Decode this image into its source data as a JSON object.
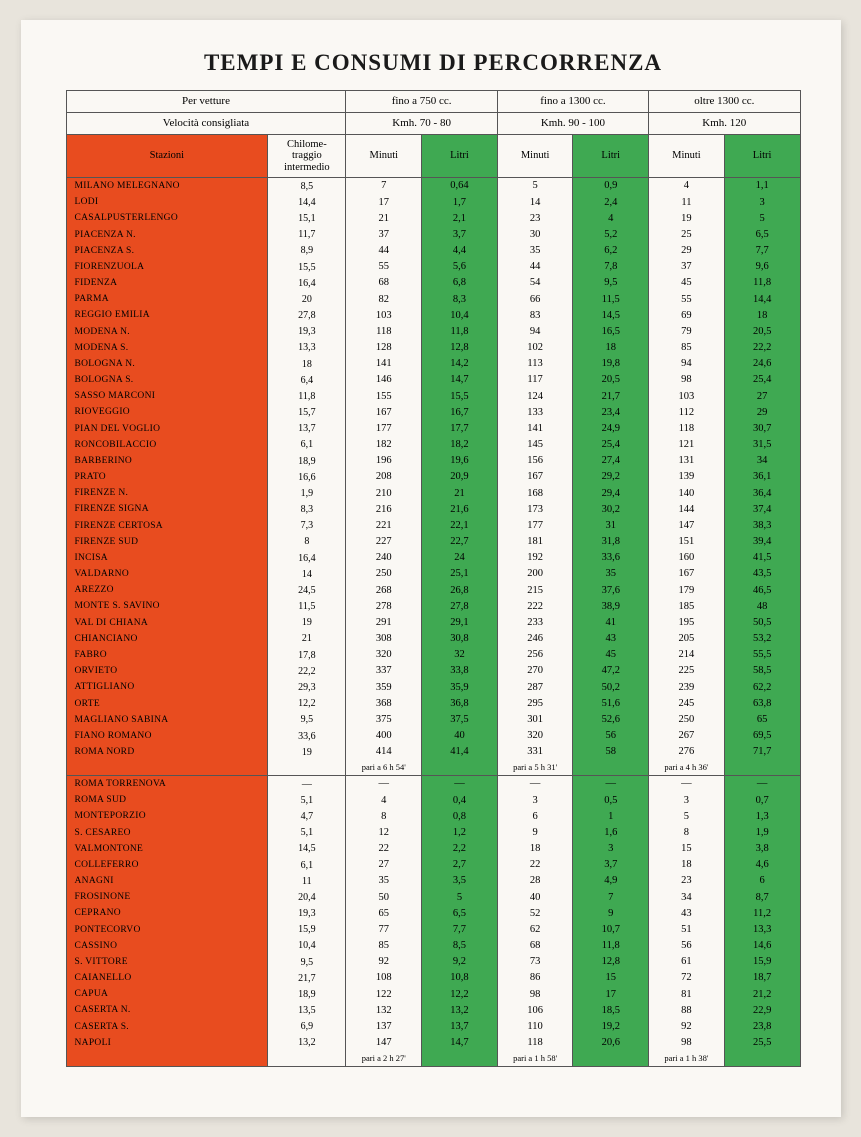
{
  "title": "TEMPI E CONSUMI DI PERCORRENZA",
  "colors": {
    "red": "#e84c1f",
    "green": "#3fa952",
    "paper": "#faf8f4",
    "border": "#555555"
  },
  "header": {
    "veh_label": "Per vetture",
    "speed_label": "Velocità consigliata",
    "stazioni_label": "Stazioni",
    "chilom_label": "Chilome-traggio intermedio",
    "cc1": "fino a 750 cc.",
    "cc2": "fino a 1300 cc.",
    "cc3": "oltre 1300 cc.",
    "kmh1": "Kmh. 70 - 80",
    "kmh2": "Kmh. 90 - 100",
    "kmh3": "Kmh. 120",
    "minuti": "Minuti",
    "litri": "Litri"
  },
  "section1": [
    {
      "stazione": "MILANO MELEGNANO",
      "km": "8,5",
      "m1": "7",
      "l1": "0,64",
      "m2": "5",
      "l2": "0,9",
      "m3": "4",
      "l3": "1,1"
    },
    {
      "stazione": "LODI",
      "km": "14,4",
      "m1": "17",
      "l1": "1,7",
      "m2": "14",
      "l2": "2,4",
      "m3": "11",
      "l3": "3"
    },
    {
      "stazione": "CASALPUSTERLENGO",
      "km": "15,1",
      "m1": "21",
      "l1": "2,1",
      "m2": "23",
      "l2": "4",
      "m3": "19",
      "l3": "5"
    },
    {
      "stazione": "PIACENZA N.",
      "km": "11,7",
      "m1": "37",
      "l1": "3,7",
      "m2": "30",
      "l2": "5,2",
      "m3": "25",
      "l3": "6,5"
    },
    {
      "stazione": "PIACENZA S.",
      "km": "8,9",
      "m1": "44",
      "l1": "4,4",
      "m2": "35",
      "l2": "6,2",
      "m3": "29",
      "l3": "7,7"
    },
    {
      "stazione": "FIORENZUOLA",
      "km": "15,5",
      "m1": "55",
      "l1": "5,6",
      "m2": "44",
      "l2": "7,8",
      "m3": "37",
      "l3": "9,6"
    },
    {
      "stazione": "FIDENZA",
      "km": "16,4",
      "m1": "68",
      "l1": "6,8",
      "m2": "54",
      "l2": "9,5",
      "m3": "45",
      "l3": "11,8"
    },
    {
      "stazione": "PARMA",
      "km": "20",
      "m1": "82",
      "l1": "8,3",
      "m2": "66",
      "l2": "11,5",
      "m3": "55",
      "l3": "14,4"
    },
    {
      "stazione": "REGGIO EMILIA",
      "km": "27,8",
      "m1": "103",
      "l1": "10,4",
      "m2": "83",
      "l2": "14,5",
      "m3": "69",
      "l3": "18"
    },
    {
      "stazione": "MODENA N.",
      "km": "19,3",
      "m1": "118",
      "l1": "11,8",
      "m2": "94",
      "l2": "16,5",
      "m3": "79",
      "l3": "20,5"
    },
    {
      "stazione": "MODENA S.",
      "km": "13,3",
      "m1": "128",
      "l1": "12,8",
      "m2": "102",
      "l2": "18",
      "m3": "85",
      "l3": "22,2"
    },
    {
      "stazione": "BOLOGNA N.",
      "km": "18",
      "m1": "141",
      "l1": "14,2",
      "m2": "113",
      "l2": "19,8",
      "m3": "94",
      "l3": "24,6"
    },
    {
      "stazione": "BOLOGNA S.",
      "km": "6,4",
      "m1": "146",
      "l1": "14,7",
      "m2": "117",
      "l2": "20,5",
      "m3": "98",
      "l3": "25,4"
    },
    {
      "stazione": "SASSO MARCONI",
      "km": "11,8",
      "m1": "155",
      "l1": "15,5",
      "m2": "124",
      "l2": "21,7",
      "m3": "103",
      "l3": "27"
    },
    {
      "stazione": "RIOVEGGIO",
      "km": "15,7",
      "m1": "167",
      "l1": "16,7",
      "m2": "133",
      "l2": "23,4",
      "m3": "112",
      "l3": "29"
    },
    {
      "stazione": "PIAN DEL VOGLIO",
      "km": "13,7",
      "m1": "177",
      "l1": "17,7",
      "m2": "141",
      "l2": "24,9",
      "m3": "118",
      "l3": "30,7"
    },
    {
      "stazione": "RONCOBILACCIO",
      "km": "6,1",
      "m1": "182",
      "l1": "18,2",
      "m2": "145",
      "l2": "25,4",
      "m3": "121",
      "l3": "31,5"
    },
    {
      "stazione": "BARBERINO",
      "km": "18,9",
      "m1": "196",
      "l1": "19,6",
      "m2": "156",
      "l2": "27,4",
      "m3": "131",
      "l3": "34"
    },
    {
      "stazione": "PRATO",
      "km": "16,6",
      "m1": "208",
      "l1": "20,9",
      "m2": "167",
      "l2": "29,2",
      "m3": "139",
      "l3": "36,1"
    },
    {
      "stazione": "FIRENZE N.",
      "km": "1,9",
      "m1": "210",
      "l1": "21",
      "m2": "168",
      "l2": "29,4",
      "m3": "140",
      "l3": "36,4"
    },
    {
      "stazione": "FIRENZE SIGNA",
      "km": "8,3",
      "m1": "216",
      "l1": "21,6",
      "m2": "173",
      "l2": "30,2",
      "m3": "144",
      "l3": "37,4"
    },
    {
      "stazione": "FIRENZE CERTOSA",
      "km": "7,3",
      "m1": "221",
      "l1": "22,1",
      "m2": "177",
      "l2": "31",
      "m3": "147",
      "l3": "38,3"
    },
    {
      "stazione": "FIRENZE SUD",
      "km": "8",
      "m1": "227",
      "l1": "22,7",
      "m2": "181",
      "l2": "31,8",
      "m3": "151",
      "l3": "39,4"
    },
    {
      "stazione": "INCISA",
      "km": "16,4",
      "m1": "240",
      "l1": "24",
      "m2": "192",
      "l2": "33,6",
      "m3": "160",
      "l3": "41,5"
    },
    {
      "stazione": "VALDARNO",
      "km": "14",
      "m1": "250",
      "l1": "25,1",
      "m2": "200",
      "l2": "35",
      "m3": "167",
      "l3": "43,5"
    },
    {
      "stazione": "AREZZO",
      "km": "24,5",
      "m1": "268",
      "l1": "26,8",
      "m2": "215",
      "l2": "37,6",
      "m3": "179",
      "l3": "46,5"
    },
    {
      "stazione": "MONTE S. SAVINO",
      "km": "11,5",
      "m1": "278",
      "l1": "27,8",
      "m2": "222",
      "l2": "38,9",
      "m3": "185",
      "l3": "48"
    },
    {
      "stazione": "VAL DI CHIANA",
      "km": "19",
      "m1": "291",
      "l1": "29,1",
      "m2": "233",
      "l2": "41",
      "m3": "195",
      "l3": "50,5"
    },
    {
      "stazione": "CHIANCIANO",
      "km": "21",
      "m1": "308",
      "l1": "30,8",
      "m2": "246",
      "l2": "43",
      "m3": "205",
      "l3": "53,2"
    },
    {
      "stazione": "FABRO",
      "km": "17,8",
      "m1": "320",
      "l1": "32",
      "m2": "256",
      "l2": "45",
      "m3": "214",
      "l3": "55,5"
    },
    {
      "stazione": "ORVIETO",
      "km": "22,2",
      "m1": "337",
      "l1": "33,8",
      "m2": "270",
      "l2": "47,2",
      "m3": "225",
      "l3": "58,5"
    },
    {
      "stazione": "ATTIGLIANO",
      "km": "29,3",
      "m1": "359",
      "l1": "35,9",
      "m2": "287",
      "l2": "50,2",
      "m3": "239",
      "l3": "62,2"
    },
    {
      "stazione": "ORTE",
      "km": "12,2",
      "m1": "368",
      "l1": "36,8",
      "m2": "295",
      "l2": "51,6",
      "m3": "245",
      "l3": "63,8"
    },
    {
      "stazione": "MAGLIANO SABINA",
      "km": "9,5",
      "m1": "375",
      "l1": "37,5",
      "m2": "301",
      "l2": "52,6",
      "m3": "250",
      "l3": "65"
    },
    {
      "stazione": "FIANO ROMANO",
      "km": "33,6",
      "m1": "400",
      "l1": "40",
      "m2": "320",
      "l2": "56",
      "m3": "267",
      "l3": "69,5"
    },
    {
      "stazione": "ROMA NORD",
      "km": "19",
      "m1": "414",
      "l1": "41,4",
      "m2": "331",
      "l2": "58",
      "m3": "276",
      "l3": "71,7"
    }
  ],
  "footer1": {
    "n1": "pari a 6 h 54'",
    "n2": "pari a 5 h 31'",
    "n3": "pari a 4 h 36'"
  },
  "section2": [
    {
      "stazione": "ROMA TORRENOVA",
      "km": "—",
      "m1": "—",
      "l1": "—",
      "m2": "—",
      "l2": "—",
      "m3": "—",
      "l3": "—"
    },
    {
      "stazione": "ROMA SUD",
      "km": "5,1",
      "m1": "4",
      "l1": "0,4",
      "m2": "3",
      "l2": "0,5",
      "m3": "3",
      "l3": "0,7"
    },
    {
      "stazione": "MONTEPORZIO",
      "km": "4,7",
      "m1": "8",
      "l1": "0,8",
      "m2": "6",
      "l2": "1",
      "m3": "5",
      "l3": "1,3"
    },
    {
      "stazione": "S. CESAREO",
      "km": "5,1",
      "m1": "12",
      "l1": "1,2",
      "m2": "9",
      "l2": "1,6",
      "m3": "8",
      "l3": "1,9"
    },
    {
      "stazione": "VALMONTONE",
      "km": "14,5",
      "m1": "22",
      "l1": "2,2",
      "m2": "18",
      "l2": "3",
      "m3": "15",
      "l3": "3,8"
    },
    {
      "stazione": "COLLEFERRO",
      "km": "6,1",
      "m1": "27",
      "l1": "2,7",
      "m2": "22",
      "l2": "3,7",
      "m3": "18",
      "l3": "4,6"
    },
    {
      "stazione": "ANAGNI",
      "km": "11",
      "m1": "35",
      "l1": "3,5",
      "m2": "28",
      "l2": "4,9",
      "m3": "23",
      "l3": "6"
    },
    {
      "stazione": "FROSINONE",
      "km": "20,4",
      "m1": "50",
      "l1": "5",
      "m2": "40",
      "l2": "7",
      "m3": "34",
      "l3": "8,7"
    },
    {
      "stazione": "CEPRANO",
      "km": "19,3",
      "m1": "65",
      "l1": "6,5",
      "m2": "52",
      "l2": "9",
      "m3": "43",
      "l3": "11,2"
    },
    {
      "stazione": "PONTECORVO",
      "km": "15,9",
      "m1": "77",
      "l1": "7,7",
      "m2": "62",
      "l2": "10,7",
      "m3": "51",
      "l3": "13,3"
    },
    {
      "stazione": "CASSINO",
      "km": "10,4",
      "m1": "85",
      "l1": "8,5",
      "m2": "68",
      "l2": "11,8",
      "m3": "56",
      "l3": "14,6"
    },
    {
      "stazione": "S. VITTORE",
      "km": "9,5",
      "m1": "92",
      "l1": "9,2",
      "m2": "73",
      "l2": "12,8",
      "m3": "61",
      "l3": "15,9"
    },
    {
      "stazione": "CAIANELLO",
      "km": "21,7",
      "m1": "108",
      "l1": "10,8",
      "m2": "86",
      "l2": "15",
      "m3": "72",
      "l3": "18,7"
    },
    {
      "stazione": "CAPUA",
      "km": "18,9",
      "m1": "122",
      "l1": "12,2",
      "m2": "98",
      "l2": "17",
      "m3": "81",
      "l3": "21,2"
    },
    {
      "stazione": "CASERTA N.",
      "km": "13,5",
      "m1": "132",
      "l1": "13,2",
      "m2": "106",
      "l2": "18,5",
      "m3": "88",
      "l3": "22,9"
    },
    {
      "stazione": "CASERTA S.",
      "km": "6,9",
      "m1": "137",
      "l1": "13,7",
      "m2": "110",
      "l2": "19,2",
      "m3": "92",
      "l3": "23,8"
    },
    {
      "stazione": "NAPOLI",
      "km": "13,2",
      "m1": "147",
      "l1": "14,7",
      "m2": "118",
      "l2": "20,6",
      "m3": "98",
      "l3": "25,5"
    }
  ],
  "footer2": {
    "n1": "pari a 2 h 27'",
    "n2": "pari a 1 h 58'",
    "n3": "pari a 1 h 38'"
  }
}
